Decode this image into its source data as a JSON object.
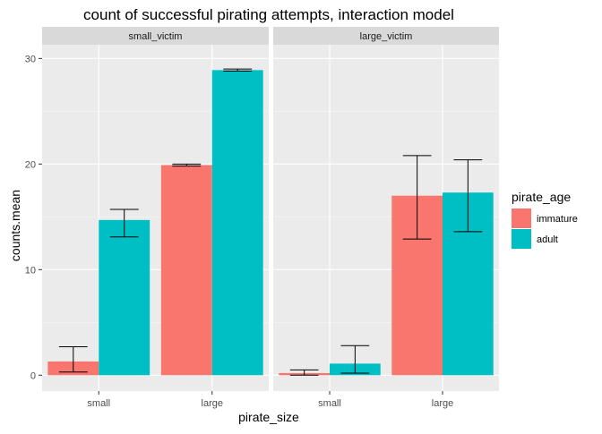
{
  "chart_data": {
    "type": "bar",
    "title": "count of successful pirating attempts, interaction model",
    "xlabel": "pirate_size",
    "ylabel": "counts.mean",
    "ylim": [
      -1.5,
      31.3
    ],
    "yticks": [
      0,
      10,
      20,
      30
    ],
    "categories": [
      "small",
      "large"
    ],
    "facets": [
      "small_victim",
      "large_victim"
    ],
    "legend": {
      "title": "pirate_age",
      "position": "right",
      "entries": [
        "immature",
        "adult"
      ]
    },
    "colors": {
      "immature": "#F8766D",
      "adult": "#00BFC4",
      "panel": "#EBEBEB",
      "strip": "#D9D9D9"
    },
    "grid": true,
    "series": [
      {
        "name": "immature",
        "facet_values": {
          "small_victim": [
            {
              "x": "small",
              "mean": 1.3,
              "lower": 0.3,
              "upper": 2.7
            },
            {
              "x": "large",
              "mean": 19.9,
              "lower": 19.8,
              "upper": 20.0
            }
          ],
          "large_victim": [
            {
              "x": "small",
              "mean": 0.2,
              "lower": 0.0,
              "upper": 0.5
            },
            {
              "x": "large",
              "mean": 17.0,
              "lower": 12.9,
              "upper": 20.8
            }
          ]
        }
      },
      {
        "name": "adult",
        "facet_values": {
          "small_victim": [
            {
              "x": "small",
              "mean": 14.7,
              "lower": 13.1,
              "upper": 15.7
            },
            {
              "x": "large",
              "mean": 28.9,
              "lower": 28.8,
              "upper": 29.0
            }
          ],
          "large_victim": [
            {
              "x": "small",
              "mean": 1.1,
              "lower": 0.2,
              "upper": 2.8
            },
            {
              "x": "large",
              "mean": 17.3,
              "lower": 13.6,
              "upper": 20.4
            }
          ]
        }
      }
    ]
  }
}
